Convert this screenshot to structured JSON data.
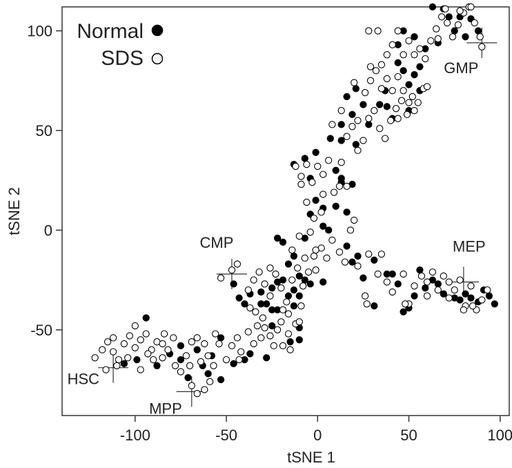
{
  "chart_data": {
    "type": "scatter",
    "xlabel": "tSNE 1",
    "ylabel": "tSNE 2",
    "xlim": [
      -140,
      105
    ],
    "ylim": [
      -93,
      112
    ],
    "x_ticks": [
      -100,
      -50,
      0,
      50,
      100
    ],
    "y_ticks": [
      -50,
      0,
      50,
      100
    ],
    "x_tick_labels": [
      "-100",
      "-50",
      "0",
      "50",
      "100"
    ],
    "y_tick_labels": [
      "-50",
      "0",
      "50",
      "100"
    ],
    "grid": false,
    "legend_position": "top-left",
    "series": [
      {
        "name": "Normal",
        "marker": "filled-circle",
        "color": "#000000",
        "points": [
          [
            -94,
            -44
          ],
          [
            -106,
            -67
          ],
          [
            -99,
            -65
          ],
          [
            -81,
            -62
          ],
          [
            -88,
            -68
          ],
          [
            -75,
            -65
          ],
          [
            -75,
            -58
          ],
          [
            -71,
            -74
          ],
          [
            -66,
            -60
          ],
          [
            -63,
            -68
          ],
          [
            -60,
            -72
          ],
          [
            -58,
            -63
          ],
          [
            -53,
            -54
          ],
          [
            -53,
            -75
          ],
          [
            -46,
            -67
          ],
          [
            -40,
            -65
          ],
          [
            -37,
            -62
          ],
          [
            -28,
            -64
          ],
          [
            -25,
            -48
          ],
          [
            -15,
            -56
          ],
          [
            -10,
            -55
          ],
          [
            -10,
            -49
          ],
          [
            -46,
            -27
          ],
          [
            -43,
            -34
          ],
          [
            -40,
            -37
          ],
          [
            -37,
            -32
          ],
          [
            -31,
            -37
          ],
          [
            -28,
            -37
          ],
          [
            -25,
            -29
          ],
          [
            -22,
            -40
          ],
          [
            -19,
            -25
          ],
          [
            -16,
            -33
          ],
          [
            -13,
            -38
          ],
          [
            -10,
            -33
          ],
          [
            -22,
            -4
          ],
          [
            -19,
            -6
          ],
          [
            -16,
            -17
          ],
          [
            -13,
            -13
          ],
          [
            -10,
            -23
          ],
          [
            -7,
            -25
          ],
          [
            -4,
            -27
          ],
          [
            -13,
            -30
          ],
          [
            -25,
            -40
          ],
          [
            -22,
            -26
          ],
          [
            -31,
            -31
          ],
          [
            -13,
            33
          ],
          [
            -7,
            36
          ],
          [
            -4,
            26
          ],
          [
            -1,
            39
          ],
          [
            3,
            2
          ],
          [
            6,
            0
          ],
          [
            -7,
            -4
          ],
          [
            3,
            -26
          ],
          [
            10,
            30
          ],
          [
            10,
            12
          ],
          [
            13,
            26
          ],
          [
            16,
            9
          ],
          [
            19,
            23
          ],
          [
            21,
            43
          ],
          [
            16,
            67
          ],
          [
            19,
            58
          ],
          [
            25,
            63
          ],
          [
            21,
            71
          ],
          [
            28,
            53
          ],
          [
            13,
            53
          ],
          [
            25,
            -24
          ],
          [
            31,
            -15
          ],
          [
            31,
            -38
          ],
          [
            38,
            -22
          ],
          [
            41,
            -22
          ],
          [
            44,
            -27
          ],
          [
            47,
            -41
          ],
          [
            50,
            -39
          ],
          [
            53,
            -33
          ],
          [
            56,
            -20
          ],
          [
            59,
            -29
          ],
          [
            66,
            -27
          ],
          [
            69,
            -32
          ],
          [
            75,
            -34
          ],
          [
            78,
            -35
          ],
          [
            81,
            -32
          ],
          [
            84,
            -34
          ],
          [
            88,
            -36
          ],
          [
            91,
            -30
          ],
          [
            94,
            -33
          ],
          [
            97,
            -37
          ],
          [
            63,
            -25
          ],
          [
            44,
            93
          ],
          [
            47,
            100
          ],
          [
            53,
            97
          ],
          [
            44,
            84
          ],
          [
            47,
            80
          ],
          [
            50,
            73
          ],
          [
            53,
            78
          ],
          [
            56,
            82
          ],
          [
            59,
            91
          ],
          [
            63,
            112
          ],
          [
            66,
            94
          ],
          [
            72,
            107
          ],
          [
            78,
            107
          ],
          [
            84,
            106
          ],
          [
            88,
            100
          ],
          [
            56,
            70
          ],
          [
            38,
            62
          ],
          [
            41,
            56
          ],
          [
            34,
            63
          ],
          [
            50,
            60
          ],
          [
            37,
            70
          ],
          [
            19,
            -16
          ],
          [
            16,
            -8
          ],
          [
            22,
            -13
          ],
          [
            -1,
            15
          ],
          [
            3,
            11
          ],
          [
            13,
            45
          ],
          [
            7,
            46
          ],
          [
            -4,
            8
          ],
          [
            13,
            24
          ],
          [
            69,
            111
          ],
          [
            75,
            100
          ],
          [
            81,
            97
          ]
        ]
      },
      {
        "name": "SDS",
        "marker": "open-circle",
        "color": "#000000",
        "points": [
          [
            -122,
            -64
          ],
          [
            -118,
            -60
          ],
          [
            -115,
            -56
          ],
          [
            -112,
            -61
          ],
          [
            -109,
            -65
          ],
          [
            -106,
            -57
          ],
          [
            -103,
            -53
          ],
          [
            -100,
            -59
          ],
          [
            -97,
            -55
          ],
          [
            -94,
            -52
          ],
          [
            -91,
            -60
          ],
          [
            -88,
            -56
          ],
          [
            -85,
            -64
          ],
          [
            -82,
            -60
          ],
          [
            -79,
            -54
          ],
          [
            -78,
            -68
          ],
          [
            -75,
            -71
          ],
          [
            -72,
            -63
          ],
          [
            -69,
            -56
          ],
          [
            -66,
            -54
          ],
          [
            -62,
            -57
          ],
          [
            -60,
            -63
          ],
          [
            -57,
            -68
          ],
          [
            -54,
            -57
          ],
          [
            -50,
            -65
          ],
          [
            -47,
            -58
          ],
          [
            -44,
            -54
          ],
          [
            -42,
            -61
          ],
          [
            -38,
            -51
          ],
          [
            -35,
            -57
          ],
          [
            -31,
            -54
          ],
          [
            -29,
            -49
          ],
          [
            -26,
            -53
          ],
          [
            -22,
            -50
          ],
          [
            -19,
            -58
          ],
          [
            -16,
            -52
          ],
          [
            -12,
            -47
          ],
          [
            -110,
            -68
          ],
          [
            -104,
            -64
          ],
          [
            -97,
            -70
          ],
          [
            -90,
            -65
          ],
          [
            -84,
            -52
          ],
          [
            -69,
            -78
          ],
          [
            -66,
            -82
          ],
          [
            -62,
            -80
          ],
          [
            -59,
            -76
          ],
          [
            -116,
            -70
          ],
          [
            -112,
            -54
          ],
          [
            -100,
            -48
          ],
          [
            -93,
            -62
          ],
          [
            -85,
            -57
          ],
          [
            -70,
            -68
          ],
          [
            -64,
            -66
          ],
          [
            -56,
            -52
          ],
          [
            -43,
            -65
          ],
          [
            -33,
            -48
          ],
          [
            -24,
            -58
          ],
          [
            -15,
            -60
          ],
          [
            -10,
            -46
          ],
          [
            -53,
            -24
          ],
          [
            -47,
            -20
          ],
          [
            -44,
            -17
          ],
          [
            -38,
            -30
          ],
          [
            -35,
            -25
          ],
          [
            -32,
            -21
          ],
          [
            -29,
            -27
          ],
          [
            -26,
            -33
          ],
          [
            -23,
            -22
          ],
          [
            -20,
            -29
          ],
          [
            -17,
            -36
          ],
          [
            -14,
            -25
          ],
          [
            -11,
            -19
          ],
          [
            -8,
            -28
          ],
          [
            -5,
            -21
          ],
          [
            -2,
            -13
          ],
          [
            -19,
            -40
          ],
          [
            -34,
            -41
          ],
          [
            -26,
            -19
          ],
          [
            -16,
            -42
          ],
          [
            -9,
            -38
          ],
          [
            -37,
            -39
          ],
          [
            -30,
            -44
          ],
          [
            -20,
            -46
          ],
          [
            -14,
            -10
          ],
          [
            -12,
            32
          ],
          [
            -9,
            27
          ],
          [
            -6,
            33
          ],
          [
            -3,
            24
          ],
          [
            0,
            32
          ],
          [
            3,
            28
          ],
          [
            6,
            35
          ],
          [
            9,
            19
          ],
          [
            12,
            22
          ],
          [
            -6,
            14
          ],
          [
            -9,
            23
          ],
          [
            3,
            18
          ],
          [
            13,
            34
          ],
          [
            2,
            -9
          ],
          [
            5,
            -14
          ],
          [
            -1,
            -20
          ],
          [
            -7,
            -14
          ],
          [
            -10,
            -3
          ],
          [
            -4,
            -1
          ],
          [
            8,
            -5
          ],
          [
            12,
            -11
          ],
          [
            15,
            -16
          ],
          [
            18,
            0
          ],
          [
            -2,
            6
          ],
          [
            -1,
            -10
          ],
          [
            2,
            9
          ],
          [
            20,
            5
          ],
          [
            16,
            22
          ],
          [
            8,
            53
          ],
          [
            13,
            60
          ],
          [
            16,
            47
          ],
          [
            19,
            52
          ],
          [
            22,
            40
          ],
          [
            25,
            45
          ],
          [
            28,
            56
          ],
          [
            31,
            60
          ],
          [
            34,
            51
          ],
          [
            37,
            46
          ],
          [
            40,
            55
          ],
          [
            43,
            61
          ],
          [
            46,
            65
          ],
          [
            49,
            58
          ],
          [
            52,
            67
          ],
          [
            55,
            64
          ],
          [
            58,
            71
          ],
          [
            22,
            55
          ],
          [
            26,
            69
          ],
          [
            29,
            75
          ],
          [
            32,
            80
          ],
          [
            35,
            71
          ],
          [
            38,
            76
          ],
          [
            41,
            70
          ],
          [
            44,
            77
          ],
          [
            47,
            70
          ],
          [
            50,
            64
          ],
          [
            53,
            88
          ],
          [
            56,
            91
          ],
          [
            59,
            86
          ],
          [
            62,
            95
          ],
          [
            65,
            101
          ],
          [
            68,
            107
          ],
          [
            71,
            104
          ],
          [
            74,
            97
          ],
          [
            77,
            103
          ],
          [
            80,
            109
          ],
          [
            83,
            112
          ],
          [
            86,
            104
          ],
          [
            89,
            97
          ],
          [
            47,
            88
          ],
          [
            50,
            95
          ],
          [
            44,
            100
          ],
          [
            41,
            93
          ],
          [
            38,
            88
          ],
          [
            35,
            83
          ],
          [
            28,
            100
          ],
          [
            33,
            100
          ],
          [
            60,
            72
          ],
          [
            66,
            96
          ],
          [
            70,
            111
          ],
          [
            78,
            110
          ],
          [
            84,
            112
          ],
          [
            90,
            92
          ],
          [
            53,
            60
          ],
          [
            44,
            56
          ],
          [
            29,
            82
          ],
          [
            20,
            74
          ],
          [
            26,
            -33
          ],
          [
            22,
            -18
          ],
          [
            28,
            -12
          ],
          [
            35,
            -12
          ],
          [
            33,
            -22
          ],
          [
            38,
            -26
          ],
          [
            41,
            -31
          ],
          [
            47,
            -22
          ],
          [
            50,
            -37
          ],
          [
            53,
            -28
          ],
          [
            57,
            -23
          ],
          [
            60,
            -33
          ],
          [
            63,
            -21
          ],
          [
            66,
            -30
          ],
          [
            69,
            -23
          ],
          [
            72,
            -34
          ],
          [
            75,
            -30
          ],
          [
            78,
            -25
          ],
          [
            81,
            -38
          ],
          [
            84,
            -28
          ],
          [
            87,
            -40
          ],
          [
            90,
            -35
          ],
          [
            93,
            -30
          ],
          [
            60,
            -26
          ],
          [
            72,
            -26
          ],
          [
            27,
            -37
          ],
          [
            48,
            -37
          ],
          [
            80,
            -40
          ],
          [
            85,
            -38
          ]
        ]
      }
    ],
    "annotations": [
      {
        "label": "HSC",
        "x": -112,
        "y": -69
      },
      {
        "label": "MPP",
        "x": -69,
        "y": -81
      },
      {
        "label": "CMP",
        "x": -47,
        "y": -22
      },
      {
        "label": "MEP",
        "x": 80,
        "y": -26
      },
      {
        "label": "GMP",
        "x": 90,
        "y": 94
      }
    ]
  }
}
